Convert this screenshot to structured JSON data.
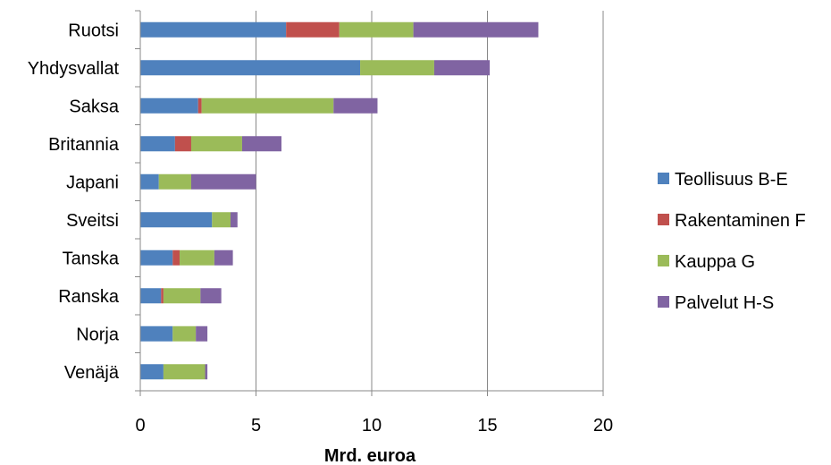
{
  "chart_data": {
    "type": "bar",
    "orientation": "horizontal",
    "stacked": true,
    "categories": [
      "Ruotsi",
      "Yhdysvallat",
      "Saksa",
      "Britannia",
      "Japani",
      "Sveitsi",
      "Tanska",
      "Ranska",
      "Norja",
      "Venäjä"
    ],
    "series": [
      {
        "name": "Teollisuus B-E",
        "color": "#4f81bd",
        "values": [
          6.3,
          9.5,
          2.5,
          1.5,
          0.8,
          3.1,
          1.4,
          0.9,
          1.4,
          1.0
        ]
      },
      {
        "name": "Rakentaminen F",
        "color": "#c0504d",
        "values": [
          2.3,
          0.0,
          0.15,
          0.7,
          0.0,
          0.0,
          0.3,
          0.1,
          0.0,
          0.0
        ]
      },
      {
        "name": "Kauppa G",
        "color": "#9bbb59",
        "values": [
          3.2,
          3.2,
          5.7,
          2.2,
          1.4,
          0.8,
          1.5,
          1.6,
          1.0,
          1.8
        ]
      },
      {
        "name": "Palvelut H-S",
        "color": "#8064a2",
        "values": [
          5.4,
          2.4,
          1.9,
          1.7,
          2.8,
          0.3,
          0.8,
          0.9,
          0.5,
          0.1
        ]
      }
    ],
    "xlabel": "Mrd. euroa",
    "xlim": [
      0,
      20
    ],
    "xticks": [
      "0",
      "5",
      "10",
      "15",
      "20"
    ],
    "grid": "vertical",
    "legend": "right"
  }
}
